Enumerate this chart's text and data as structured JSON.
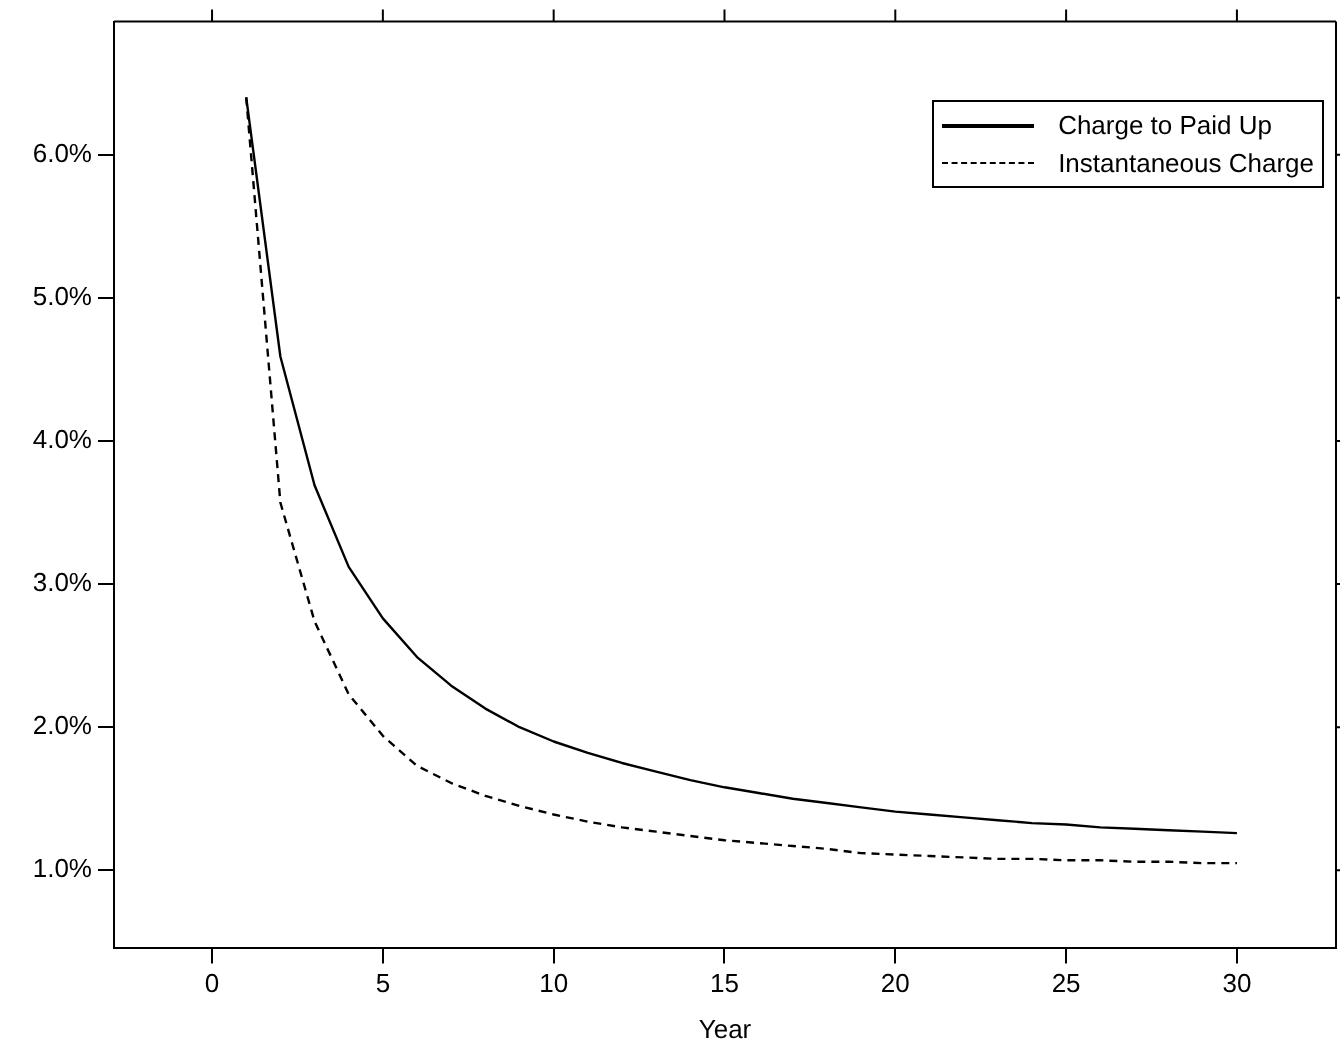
{
  "chart_data": {
    "type": "line",
    "xlabel": "Year",
    "x": [
      1,
      2,
      3,
      4,
      5,
      6,
      7,
      8,
      9,
      10,
      11,
      12,
      13,
      14,
      15,
      16,
      17,
      18,
      19,
      20,
      21,
      22,
      23,
      24,
      25,
      26,
      27,
      28,
      29,
      30
    ],
    "series": [
      {
        "name": "Charge to Paid Up",
        "color": "#000000",
        "line_style": "solid",
        "values": [
          6.4,
          4.59,
          3.69,
          3.12,
          2.76,
          2.49,
          2.29,
          2.13,
          2.0,
          1.9,
          1.82,
          1.75,
          1.69,
          1.63,
          1.58,
          1.54,
          1.5,
          1.47,
          1.44,
          1.41,
          1.39,
          1.37,
          1.35,
          1.33,
          1.32,
          1.3,
          1.29,
          1.28,
          1.27,
          1.26
        ]
      },
      {
        "name": "Instantaneous Charge",
        "color": "#000000",
        "line_style": "dashed",
        "values": [
          6.4,
          3.57,
          2.74,
          2.23,
          1.94,
          1.73,
          1.61,
          1.52,
          1.45,
          1.39,
          1.34,
          1.3,
          1.27,
          1.24,
          1.21,
          1.19,
          1.17,
          1.15,
          1.12,
          1.11,
          1.1,
          1.09,
          1.08,
          1.08,
          1.07,
          1.07,
          1.06,
          1.06,
          1.05,
          1.05
        ]
      }
    ],
    "xlim": [
      -2.87,
      32.9
    ],
    "xticks": [
      0,
      5,
      10,
      15,
      20,
      25,
      30
    ],
    "ylim": [
      0.46,
      6.93
    ],
    "yticks": [
      {
        "value": 1,
        "label": "1.0%"
      },
      {
        "value": 2,
        "label": "2.0%"
      },
      {
        "value": 3,
        "label": "3.0%"
      },
      {
        "value": 4,
        "label": "4.0%"
      },
      {
        "value": 5,
        "label": "5.0%"
      },
      {
        "value": 6,
        "label": "6.0%"
      }
    ],
    "marker": "none",
    "grid": false,
    "legend": "top right"
  }
}
